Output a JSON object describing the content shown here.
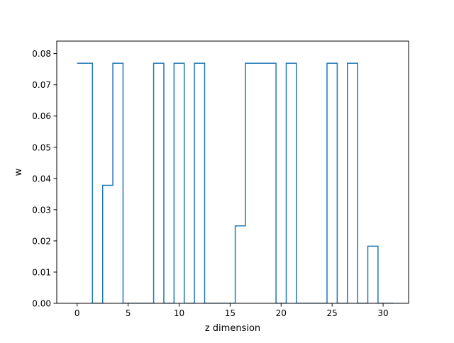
{
  "chart_data": {
    "type": "line",
    "drawstyle": "steps-mid",
    "title": "",
    "xlabel": "z dimension",
    "ylabel": "w",
    "xlim": [
      -2,
      32.5
    ],
    "ylim": [
      0,
      0.084
    ],
    "x_ticks": [
      0,
      5,
      10,
      15,
      20,
      25,
      30
    ],
    "y_ticks": [
      0.0,
      0.01,
      0.02,
      0.03,
      0.04,
      0.05,
      0.06,
      0.07,
      0.08
    ],
    "y_tick_labels": [
      "0.00",
      "0.01",
      "0.02",
      "0.03",
      "0.04",
      "0.05",
      "0.06",
      "0.07",
      "0.08"
    ],
    "grid": false,
    "legend": "none",
    "series": [
      {
        "color": "#1f77b4",
        "x": [
          0,
          1,
          2,
          3,
          4,
          5,
          6,
          7,
          8,
          9,
          10,
          11,
          12,
          13,
          14,
          15,
          16,
          17,
          18,
          19,
          20,
          21,
          22,
          23,
          24,
          25,
          26,
          27,
          28,
          29,
          30,
          31
        ],
        "y": [
          0.0769,
          0.0769,
          0,
          0.0378,
          0.0769,
          0,
          0,
          0,
          0.0769,
          0,
          0.0769,
          0,
          0.0769,
          0,
          0,
          0,
          0.0248,
          0.0769,
          0.0769,
          0.0769,
          0,
          0.0769,
          0,
          0,
          0,
          0.0769,
          0,
          0.0769,
          0,
          0.0183,
          0,
          0
        ]
      }
    ]
  }
}
